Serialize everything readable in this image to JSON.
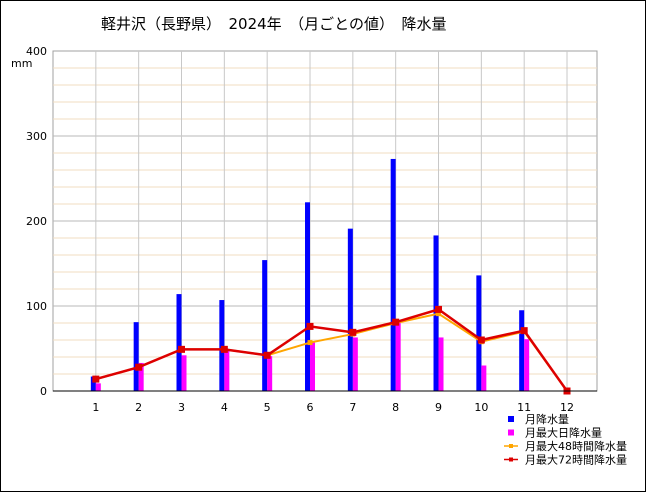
{
  "chart_data": {
    "type": "bar",
    "title": "軽井沢（長野県）　2024年　（月ごとの値）　降水量",
    "ylabel": "mm",
    "xlabel": "",
    "ylim": [
      0,
      400
    ],
    "yticks": [
      0,
      100,
      200,
      300,
      400
    ],
    "categories": [
      "1",
      "2",
      "3",
      "4",
      "5",
      "6",
      "7",
      "8",
      "9",
      "10",
      "11",
      "12"
    ],
    "grid": true,
    "legend_position": "bottom-right",
    "series": [
      {
        "name": "月降水量",
        "kind": "bar",
        "color": "#0000ff",
        "values": [
          17,
          81,
          114,
          107,
          154,
          222,
          191,
          273,
          183,
          136,
          95,
          0
        ]
      },
      {
        "name": "月最大日降水量",
        "kind": "bar",
        "color": "#ff00ff",
        "values": [
          9,
          33,
          42,
          47,
          41,
          57,
          63,
          80,
          63,
          30,
          61,
          0
        ]
      },
      {
        "name": "月最大48時間降水量",
        "kind": "line",
        "color": "#ffa500",
        "values": [
          14,
          28,
          49,
          49,
          42,
          57,
          67,
          80,
          91,
          58,
          70,
          0
        ]
      },
      {
        "name": "月最大72時間降水量",
        "kind": "line",
        "color": "#dd0000",
        "values": [
          14,
          28,
          49,
          49,
          42,
          76,
          69,
          81,
          96,
          60,
          71,
          0
        ]
      }
    ]
  }
}
